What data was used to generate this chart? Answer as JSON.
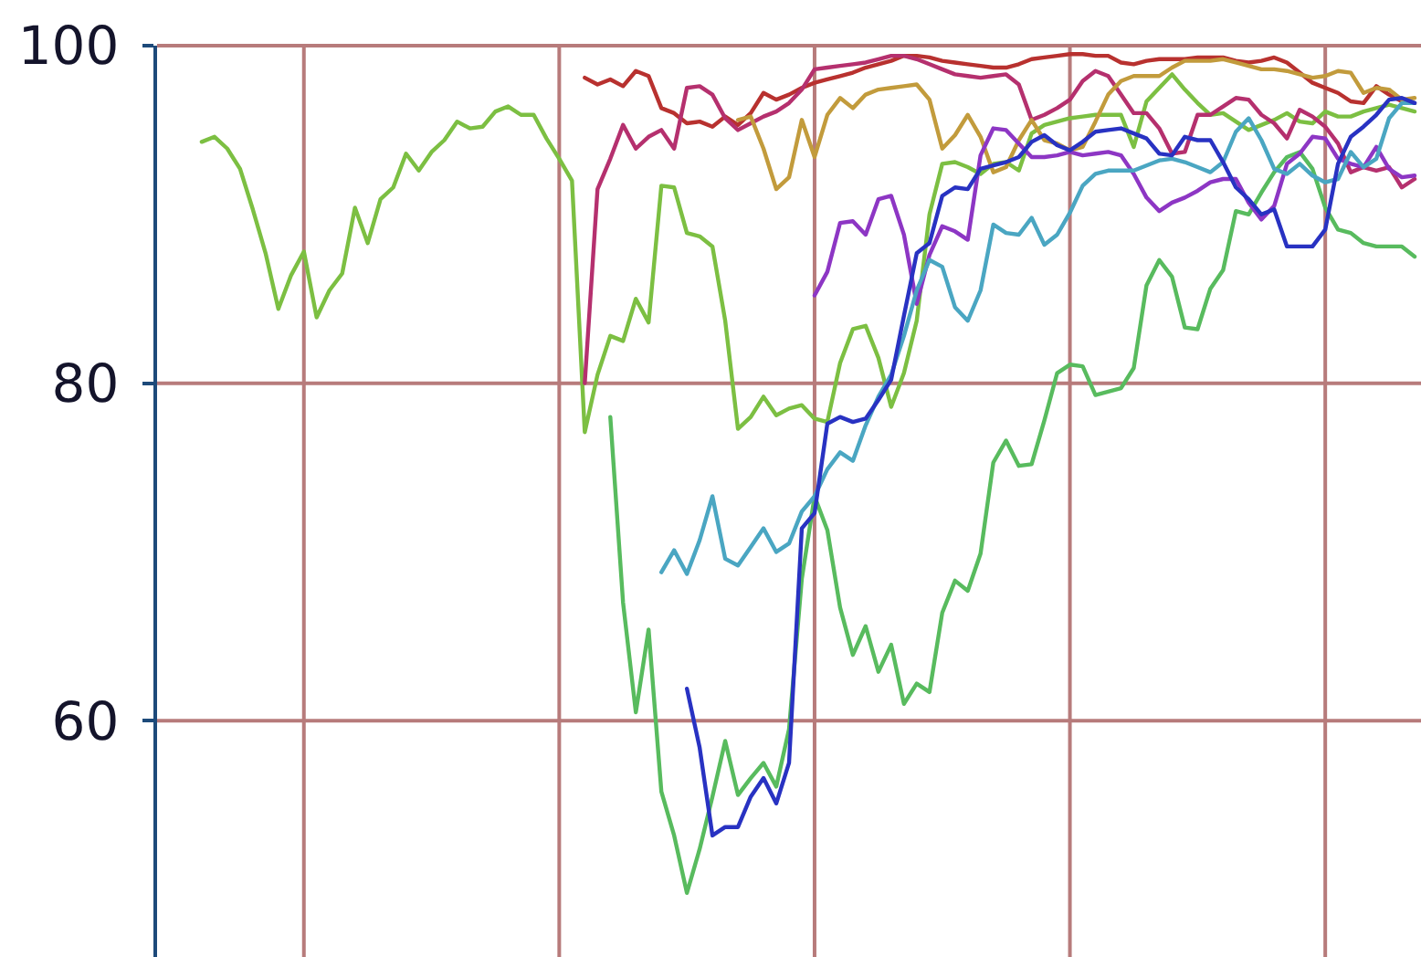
{
  "chart_data": {
    "type": "line",
    "ylim": [
      46,
      100
    ],
    "yticks": [
      60,
      80,
      100
    ],
    "grid": true,
    "tick_labels": "y",
    "categories": [
      null,
      null,
      null,
      null,
      null,
      null,
      null,
      null,
      null,
      null,
      null,
      null,
      null,
      null,
      null,
      null,
      null,
      null,
      null,
      null,
      null,
      null,
      null,
      null,
      null,
      null,
      null,
      null,
      null,
      null,
      null,
      null,
      null,
      null,
      null,
      null,
      null,
      null,
      null,
      null,
      null,
      null,
      null,
      null,
      null,
      null,
      null,
      null,
      null,
      null,
      null,
      null,
      null,
      null,
      null,
      null,
      null,
      null,
      null,
      null,
      null,
      null,
      null,
      null,
      null,
      null,
      null,
      null,
      null,
      null,
      null,
      null,
      null,
      null,
      null,
      null,
      null,
      null,
      null,
      null,
      null,
      null,
      null,
      null,
      null,
      null,
      null,
      null,
      null,
      null,
      null,
      null,
      null,
      null,
      null,
      null,
      null,
      null,
      null
    ],
    "series": [
      {
        "color": "#7cbf42",
        "values": [
          null,
          null,
          null,
          94.3,
          94.6,
          93.9,
          92.7,
          90.3,
          87.7,
          84.4,
          86.4,
          87.8,
          83.9,
          85.5,
          86.5,
          90.4,
          88.3,
          90.9,
          91.6,
          93.6,
          92.6,
          93.7,
          94.4,
          95.5,
          95.1,
          95.2,
          96.1,
          96.4,
          95.9,
          95.9,
          94.5,
          93.3,
          92.0,
          77.1,
          80.5,
          82.8,
          82.5,
          85.0,
          83.6,
          91.7,
          91.6,
          88.9,
          88.7,
          88.1,
          83.7,
          77.3,
          78.0,
          79.2,
          78.1,
          78.5,
          78.7,
          77.9,
          77.7,
          81.2,
          83.2,
          83.4,
          81.5,
          78.6,
          80.6,
          83.7,
          90.0,
          93.0,
          93.1,
          92.8,
          92.4,
          93.0,
          93.1,
          92.6,
          94.8,
          95.3,
          95.5,
          95.7,
          95.8,
          95.9,
          95.9,
          95.9,
          94.0,
          96.7,
          97.5,
          98.3,
          97.4,
          96.6,
          95.9,
          96.0,
          95.5,
          95.0,
          95.3,
          95.6,
          96.0,
          95.5,
          95.4,
          96.1,
          95.8,
          95.8,
          96.1,
          96.3,
          96.5,
          96.3,
          96.1
        ]
      },
      {
        "color": "#58bb5e",
        "values": [
          null,
          null,
          null,
          null,
          null,
          null,
          null,
          null,
          null,
          null,
          null,
          null,
          null,
          null,
          null,
          null,
          null,
          null,
          null,
          null,
          null,
          null,
          null,
          null,
          null,
          null,
          null,
          null,
          null,
          null,
          null,
          null,
          null,
          null,
          null,
          78.0,
          67.0,
          60.5,
          65.4,
          55.8,
          53.2,
          49.8,
          52.4,
          55.5,
          58.8,
          55.6,
          56.6,
          57.5,
          56.1,
          59.5,
          68.4,
          73.3,
          71.3,
          66.7,
          63.9,
          65.6,
          62.9,
          64.5,
          61.0,
          62.2,
          61.7,
          66.4,
          68.3,
          67.7,
          69.9,
          75.3,
          76.6,
          75.1,
          75.2,
          77.8,
          80.6,
          81.1,
          81.0,
          79.3,
          79.5,
          79.7,
          80.9,
          85.8,
          87.3,
          86.3,
          83.3,
          83.2,
          85.6,
          86.7,
          90.2,
          90.0,
          91.3,
          92.5,
          93.4,
          93.7,
          92.7,
          90.4,
          89.1,
          88.9,
          88.3,
          88.1,
          88.1,
          88.1,
          87.5
        ]
      },
      {
        "color": "#b8312f",
        "values": [
          null,
          null,
          null,
          null,
          null,
          null,
          null,
          null,
          null,
          null,
          null,
          null,
          null,
          null,
          null,
          null,
          null,
          null,
          null,
          null,
          null,
          null,
          null,
          null,
          null,
          null,
          null,
          null,
          null,
          null,
          null,
          null,
          null,
          98.1,
          97.7,
          98.0,
          97.6,
          98.5,
          98.2,
          96.3,
          96.0,
          95.4,
          95.5,
          95.2,
          95.8,
          95.3,
          96.0,
          97.2,
          96.8,
          97.1,
          97.5,
          97.8,
          98.0,
          98.2,
          98.4,
          98.7,
          98.9,
          99.1,
          99.4,
          99.4,
          99.3,
          99.1,
          99.0,
          98.9,
          98.8,
          98.7,
          98.7,
          98.9,
          99.2,
          99.3,
          99.4,
          99.5,
          99.5,
          99.4,
          99.4,
          99.0,
          98.9,
          99.1,
          99.2,
          99.2,
          99.2,
          99.3,
          99.3,
          99.3,
          99.1,
          99.0,
          99.1,
          99.3,
          99.0,
          98.4,
          97.8,
          97.5,
          97.2,
          96.7,
          96.6,
          97.6,
          97.1,
          96.7,
          96.6
        ]
      },
      {
        "color": "#b5306e",
        "values": [
          null,
          null,
          null,
          null,
          null,
          null,
          null,
          null,
          null,
          null,
          null,
          null,
          null,
          null,
          null,
          null,
          null,
          null,
          null,
          null,
          null,
          null,
          null,
          null,
          null,
          null,
          null,
          null,
          null,
          null,
          null,
          null,
          null,
          80.0,
          91.5,
          93.3,
          95.3,
          93.9,
          94.6,
          95.0,
          93.9,
          97.5,
          97.6,
          97.1,
          95.7,
          95.0,
          95.4,
          95.8,
          96.1,
          96.6,
          97.4,
          98.6,
          98.7,
          98.8,
          98.9,
          99.0,
          99.2,
          99.4,
          99.4,
          99.2,
          98.9,
          98.6,
          98.3,
          98.2,
          98.1,
          98.2,
          98.3,
          97.7,
          95.6,
          95.9,
          96.3,
          96.8,
          97.9,
          98.5,
          98.2,
          97.1,
          96.0,
          96.0,
          95.1,
          93.6,
          93.7,
          95.9,
          95.9,
          96.4,
          96.9,
          96.8,
          95.9,
          95.4,
          94.5,
          96.2,
          95.8,
          95.2,
          94.2,
          92.5,
          92.8,
          92.6,
          92.8,
          91.6,
          92.1
        ]
      },
      {
        "color": "#c29b3c",
        "values": [
          null,
          null,
          null,
          null,
          null,
          null,
          null,
          null,
          null,
          null,
          null,
          null,
          null,
          null,
          null,
          null,
          null,
          null,
          null,
          null,
          null,
          null,
          null,
          null,
          null,
          null,
          null,
          null,
          null,
          null,
          null,
          null,
          null,
          null,
          null,
          null,
          null,
          null,
          null,
          null,
          null,
          null,
          null,
          null,
          null,
          95.6,
          95.8,
          93.9,
          91.5,
          92.2,
          95.6,
          93.4,
          95.9,
          96.9,
          96.3,
          97.1,
          97.4,
          97.5,
          97.6,
          97.7,
          96.8,
          93.9,
          94.7,
          95.9,
          94.6,
          92.5,
          92.8,
          94.4,
          95.6,
          94.4,
          94.2,
          93.8,
          94.0,
          95.5,
          97.1,
          97.9,
          98.2,
          98.2,
          98.2,
          98.7,
          99.1,
          99.1,
          99.1,
          99.2,
          99.0,
          98.8,
          98.6,
          98.6,
          98.5,
          98.3,
          98.1,
          98.2,
          98.5,
          98.4,
          97.2,
          97.5,
          97.4,
          96.8,
          96.9
        ]
      },
      {
        "color": "#8d36c4",
        "values": [
          null,
          null,
          null,
          null,
          null,
          null,
          null,
          null,
          null,
          null,
          null,
          null,
          null,
          null,
          null,
          null,
          null,
          null,
          null,
          null,
          null,
          null,
          null,
          null,
          null,
          null,
          null,
          null,
          null,
          null,
          null,
          null,
          null,
          null,
          null,
          null,
          null,
          null,
          null,
          null,
          null,
          null,
          null,
          null,
          null,
          null,
          null,
          null,
          null,
          null,
          null,
          85.2,
          86.6,
          89.5,
          89.6,
          88.8,
          90.9,
          91.1,
          88.8,
          84.7,
          87.6,
          89.3,
          89.0,
          88.5,
          93.5,
          95.1,
          95.0,
          94.2,
          93.4,
          93.4,
          93.5,
          93.7,
          93.5,
          93.6,
          93.7,
          93.5,
          92.4,
          91.0,
          90.2,
          90.7,
          91.0,
          91.4,
          91.9,
          92.1,
          92.1,
          90.7,
          89.7,
          90.5,
          93.0,
          93.6,
          94.6,
          94.5,
          93.3,
          93.0,
          92.8,
          94.0,
          92.7,
          92.2,
          92.3
        ]
      },
      {
        "color": "#4aa6c2",
        "values": [
          null,
          null,
          null,
          null,
          null,
          null,
          null,
          null,
          null,
          null,
          null,
          null,
          null,
          null,
          null,
          null,
          null,
          null,
          null,
          null,
          null,
          null,
          null,
          null,
          null,
          null,
          null,
          null,
          null,
          null,
          null,
          null,
          null,
          null,
          null,
          null,
          null,
          null,
          null,
          68.8,
          70.1,
          68.7,
          70.7,
          73.3,
          69.6,
          69.2,
          70.3,
          71.4,
          70.0,
          70.5,
          72.4,
          73.3,
          74.9,
          75.9,
          75.4,
          77.5,
          79.2,
          80.5,
          82.8,
          85.5,
          87.3,
          86.9,
          84.5,
          83.7,
          85.5,
          89.4,
          88.9,
          88.8,
          89.8,
          88.2,
          88.8,
          90.1,
          91.7,
          92.4,
          92.6,
          92.6,
          92.6,
          92.9,
          93.2,
          93.3,
          93.1,
          92.8,
          92.5,
          93.1,
          94.9,
          95.7,
          94.4,
          92.7,
          92.4,
          93.0,
          92.3,
          91.9,
          92.1,
          93.7,
          92.8,
          93.3,
          95.7,
          96.6,
          96.6
        ]
      },
      {
        "color": "#2832c2",
        "values": [
          null,
          null,
          null,
          null,
          null,
          null,
          null,
          null,
          null,
          null,
          null,
          null,
          null,
          null,
          null,
          null,
          null,
          null,
          null,
          null,
          null,
          null,
          null,
          null,
          null,
          null,
          null,
          null,
          null,
          null,
          null,
          null,
          null,
          null,
          null,
          null,
          null,
          null,
          null,
          null,
          null,
          61.9,
          58.4,
          53.2,
          53.7,
          53.7,
          55.5,
          56.6,
          55.1,
          57.5,
          71.4,
          72.3,
          77.6,
          78.0,
          77.7,
          77.9,
          79.0,
          80.2,
          84.0,
          87.7,
          88.3,
          91.1,
          91.6,
          91.5,
          92.7,
          92.9,
          93.1,
          93.4,
          94.3,
          94.7,
          94.1,
          93.8,
          94.3,
          94.9,
          95.0,
          95.1,
          94.8,
          94.5,
          93.6,
          93.5,
          94.6,
          94.4,
          94.4,
          93.1,
          91.6,
          90.9,
          90.0,
          90.3,
          88.1,
          88.1,
          88.1,
          89.1,
          93.0,
          94.6,
          95.2,
          95.9,
          96.8,
          96.9,
          96.6
        ]
      }
    ]
  }
}
